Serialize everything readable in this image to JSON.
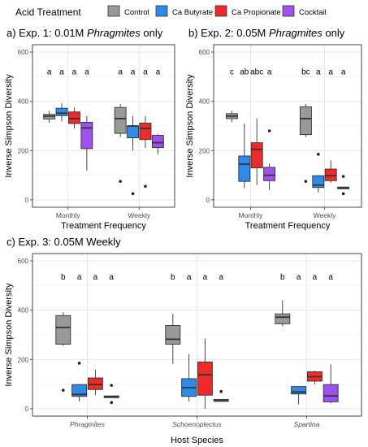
{
  "legend": {
    "title": "Acid Treatment",
    "items": [
      {
        "name": "Control",
        "color": "#999999"
      },
      {
        "name": "Ca Butyrate",
        "color": "#2f8be8"
      },
      {
        "name": "Ca Propionate",
        "color": "#ee2a2a"
      },
      {
        "name": "Cocktail",
        "color": "#9f50f0"
      }
    ]
  },
  "colors": {
    "Control": "#999999",
    "Ca Butyrate": "#2f8be8",
    "Ca Propionate": "#ee2a2a",
    "Cocktail": "#9f50f0",
    "panel_bg": "#ffffff",
    "grid": "#e6e6e6",
    "frame": "#333333"
  },
  "chart_data": [
    {
      "type": "box",
      "panel": "a",
      "title_prefix": "a) Exp. 1: 0.01M ",
      "title_italic": "Phragmites",
      "title_suffix": " only",
      "xlabel": "Treatment Frequency",
      "ylabel": "Inverse Simpson Diversity",
      "ylim": [
        -30,
        630
      ],
      "yticks": [
        0,
        200,
        400,
        600
      ],
      "categories": [
        "Monthly",
        "Weekly"
      ],
      "groups": [
        {
          "category": "Monthly",
          "treatment": "Control",
          "min": 313,
          "q1": 328,
          "median": 340,
          "q3": 347,
          "max": 362,
          "outliers": [],
          "letter": "a"
        },
        {
          "category": "Monthly",
          "treatment": "Ca Butyrate",
          "min": 318,
          "q1": 342,
          "median": 352,
          "q3": 372,
          "max": 392,
          "outliers": [],
          "letter": "a"
        },
        {
          "category": "Monthly",
          "treatment": "Ca Propionate",
          "min": 290,
          "q1": 310,
          "median": 330,
          "q3": 357,
          "max": 375,
          "outliers": [],
          "letter": "a"
        },
        {
          "category": "Monthly",
          "treatment": "Cocktail",
          "min": 120,
          "q1": 208,
          "median": 292,
          "q3": 315,
          "max": 340,
          "outliers": [],
          "letter": "a"
        },
        {
          "category": "Weekly",
          "treatment": "Control",
          "min": 255,
          "q1": 270,
          "median": 330,
          "q3": 375,
          "max": 390,
          "outliers": [
            75
          ],
          "letter": "a"
        },
        {
          "category": "Weekly",
          "treatment": "Ca Butyrate",
          "min": 200,
          "q1": 252,
          "median": 300,
          "q3": 300,
          "max": 340,
          "outliers": [
            25
          ],
          "letter": "a"
        },
        {
          "category": "Weekly",
          "treatment": "Ca Propionate",
          "min": 210,
          "q1": 245,
          "median": 290,
          "q3": 312,
          "max": 340,
          "outliers": [
            55
          ],
          "letter": "a"
        },
        {
          "category": "Weekly",
          "treatment": "Cocktail",
          "min": 185,
          "q1": 212,
          "median": 232,
          "q3": 262,
          "max": 268,
          "outliers": [],
          "letter": "a"
        }
      ]
    },
    {
      "type": "box",
      "panel": "b",
      "title_prefix": "b) Exp. 2: 0.05M ",
      "title_italic": "Phragmites",
      "title_suffix": " only",
      "xlabel": "Treatment Frequency",
      "ylabel": "",
      "ylim": [
        -30,
        630
      ],
      "yticks": [
        0,
        200,
        400,
        600
      ],
      "categories": [
        "Monthly",
        "Weekly"
      ],
      "groups": [
        {
          "category": "Monthly",
          "treatment": "Control",
          "min": 315,
          "q1": 330,
          "median": 340,
          "q3": 350,
          "max": 362,
          "outliers": [],
          "letter": "c"
        },
        {
          "category": "Monthly",
          "treatment": "Ca Butyrate",
          "min": 48,
          "q1": 75,
          "median": 145,
          "q3": 178,
          "max": 310,
          "outliers": [],
          "letter": "ab"
        },
        {
          "category": "Monthly",
          "treatment": "Ca Propionate",
          "min": 60,
          "q1": 130,
          "median": 205,
          "q3": 232,
          "max": 330,
          "outliers": [],
          "letter": "abc"
        },
        {
          "category": "Monthly",
          "treatment": "Cocktail",
          "min": 40,
          "q1": 78,
          "median": 100,
          "q3": 132,
          "max": 148,
          "outliers": [
            280
          ],
          "letter": "a"
        },
        {
          "category": "Weekly",
          "treatment": "Control",
          "min": 255,
          "q1": 265,
          "median": 330,
          "q3": 378,
          "max": 390,
          "outliers": [
            75
          ],
          "letter": "bc"
        },
        {
          "category": "Weekly",
          "treatment": "Ca Butyrate",
          "min": 30,
          "q1": 50,
          "median": 60,
          "q3": 98,
          "max": 100,
          "outliers": [
            185
          ],
          "letter": "a"
        },
        {
          "category": "Weekly",
          "treatment": "Ca Propionate",
          "min": 70,
          "q1": 78,
          "median": 98,
          "q3": 125,
          "max": 160,
          "outliers": [],
          "letter": "a"
        },
        {
          "category": "Weekly",
          "treatment": "Cocktail",
          "min": 45,
          "q1": 45,
          "median": 48,
          "q3": 52,
          "max": 52,
          "outliers": [
            95,
            25
          ],
          "letter": "a"
        }
      ]
    },
    {
      "type": "box",
      "panel": "c",
      "title": "c) Exp. 3: 0.05M Weekly",
      "xlabel": "Host Species",
      "ylabel": "Inverse Simpson Diversity",
      "ylim": [
        -30,
        630
      ],
      "yticks": [
        0,
        200,
        400,
        600
      ],
      "categories": [
        "Phragmites",
        "Schoenoplectus",
        "Spartina"
      ],
      "groups": [
        {
          "category": "Phragmites",
          "treatment": "Control",
          "min": 255,
          "q1": 262,
          "median": 330,
          "q3": 378,
          "max": 392,
          "outliers": [
            75
          ],
          "letter": "b"
        },
        {
          "category": "Phragmites",
          "treatment": "Ca Butyrate",
          "min": 30,
          "q1": 50,
          "median": 58,
          "q3": 98,
          "max": 100,
          "outliers": [
            185
          ],
          "letter": "a"
        },
        {
          "category": "Phragmites",
          "treatment": "Ca Propionate",
          "min": 55,
          "q1": 78,
          "median": 98,
          "q3": 125,
          "max": 158,
          "outliers": [],
          "letter": "a"
        },
        {
          "category": "Phragmites",
          "treatment": "Cocktail",
          "min": 45,
          "q1": 45,
          "median": 48,
          "q3": 52,
          "max": 52,
          "outliers": [
            95,
            25
          ],
          "letter": "a"
        },
        {
          "category": "Schoenoplectus",
          "treatment": "Control",
          "min": 182,
          "q1": 262,
          "median": 282,
          "q3": 338,
          "max": 385,
          "outliers": [],
          "letter": "b"
        },
        {
          "category": "Schoenoplectus",
          "treatment": "Ca Butyrate",
          "min": 30,
          "q1": 50,
          "median": 85,
          "q3": 122,
          "max": 222,
          "outliers": [],
          "letter": "a"
        },
        {
          "category": "Schoenoplectus",
          "treatment": "Ca Propionate",
          "min": 0,
          "q1": 55,
          "median": 138,
          "q3": 190,
          "max": 285,
          "outliers": [],
          "letter": "a"
        },
        {
          "category": "Schoenoplectus",
          "treatment": "Cocktail",
          "min": 30,
          "q1": 30,
          "median": 32,
          "q3": 38,
          "max": 38,
          "outliers": [
            70
          ],
          "letter": "a"
        },
        {
          "category": "Spartina",
          "treatment": "Control",
          "min": 335,
          "q1": 345,
          "median": 372,
          "q3": 385,
          "max": 440,
          "outliers": [],
          "letter": "b"
        },
        {
          "category": "Spartina",
          "treatment": "Ca Butyrate",
          "min": 18,
          "q1": 60,
          "median": 68,
          "q3": 90,
          "max": 92,
          "outliers": [],
          "letter": "a"
        },
        {
          "category": "Spartina",
          "treatment": "Ca Propionate",
          "min": 100,
          "q1": 112,
          "median": 130,
          "q3": 150,
          "max": 155,
          "outliers": [],
          "letter": "a"
        },
        {
          "category": "Spartina",
          "treatment": "Cocktail",
          "min": 22,
          "q1": 28,
          "median": 52,
          "q3": 98,
          "max": 180,
          "outliers": [],
          "letter": "a"
        }
      ]
    }
  ]
}
